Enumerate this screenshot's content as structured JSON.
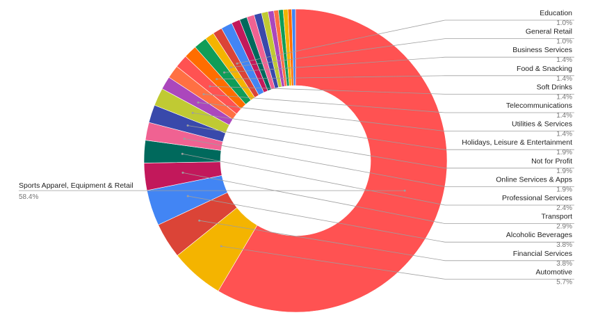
{
  "chart_data": {
    "type": "pie",
    "donut": true,
    "title": "",
    "legend": "none",
    "slices": [
      {
        "label": "Sports Apparel, Equipment & Retail",
        "value": 58.4,
        "value_label": "58.4%",
        "color": "#ff5252"
      },
      {
        "label": "Automotive",
        "value": 5.7,
        "value_label": "5.7%",
        "color": "#f4b400"
      },
      {
        "label": "Financial Services",
        "value": 3.8,
        "value_label": "3.8%",
        "color": "#db4437"
      },
      {
        "label": "Alcoholic Beverages",
        "value": 3.8,
        "value_label": "3.8%",
        "color": "#4285f4"
      },
      {
        "label": "Transport",
        "value": 2.9,
        "value_label": "2.9%",
        "color": "#c2185b"
      },
      {
        "label": "Professional Services",
        "value": 2.4,
        "value_label": "2.4%",
        "color": "#00695c"
      },
      {
        "label": "Online Services & Apps",
        "value": 1.9,
        "value_label": "1.9%",
        "color": "#f06292"
      },
      {
        "label": "Not for Profit",
        "value": 1.9,
        "value_label": "1.9%",
        "color": "#3949ab"
      },
      {
        "label": "Holidays, Leisure & Entertainment",
        "value": 1.9,
        "value_label": "1.9%",
        "color": "#c0ca33"
      },
      {
        "label": "Utilities & Services",
        "value": 1.4,
        "value_label": "1.4%",
        "color": "#ab47bc"
      },
      {
        "label": "Telecommunications",
        "value": 1.4,
        "value_label": "1.4%",
        "color": "#ff7043"
      },
      {
        "label": "Soft Drinks",
        "value": 1.4,
        "value_label": "1.4%",
        "color": "#ff5252"
      },
      {
        "label": "Food & Snacking",
        "value": 1.4,
        "value_label": "1.4%",
        "color": "#ff6d00"
      },
      {
        "label": "Business Services",
        "value": 1.4,
        "value_label": "1.4%",
        "color": "#0f9d58"
      },
      {
        "label": "General Retail",
        "value": 1.0,
        "value_label": "1.0%",
        "color": "#f4b400"
      },
      {
        "label": "Education",
        "value": 1.0,
        "value_label": "1.0%",
        "color": "#db4437"
      },
      {
        "label": "",
        "value": 1.2,
        "color": "#4285f4"
      },
      {
        "label": "",
        "value": 0.9,
        "color": "#c2185b"
      },
      {
        "label": "",
        "value": 0.8,
        "color": "#00695c"
      },
      {
        "label": "",
        "value": 0.8,
        "color": "#f06292"
      },
      {
        "label": "",
        "value": 0.8,
        "color": "#3949ab"
      },
      {
        "label": "",
        "value": 0.7,
        "color": "#c0ca33"
      },
      {
        "label": "",
        "value": 0.6,
        "color": "#ab47bc"
      },
      {
        "label": "",
        "value": 0.5,
        "color": "#ff7043"
      },
      {
        "label": "",
        "value": 0.5,
        "color": "#0f9d58"
      },
      {
        "label": "",
        "value": 0.5,
        "color": "#f4b400"
      },
      {
        "label": "",
        "value": 0.4,
        "color": "#ff6d00"
      },
      {
        "label": "",
        "value": 0.4,
        "color": "#4285f4"
      }
    ]
  }
}
